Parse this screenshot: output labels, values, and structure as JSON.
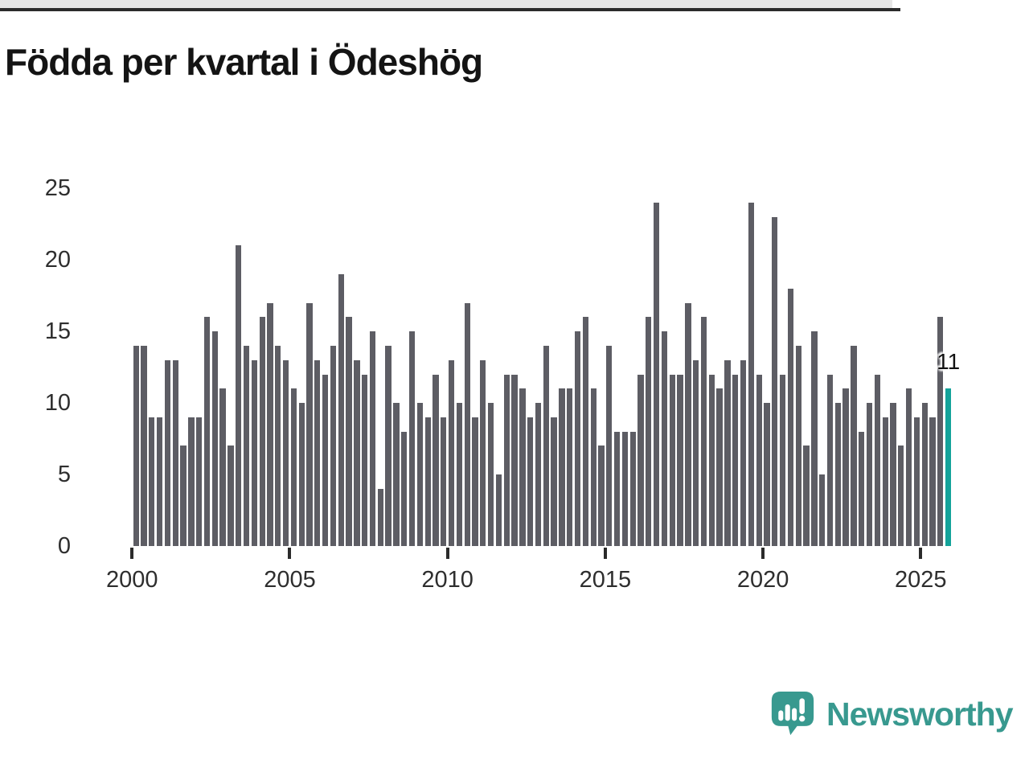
{
  "title": "Födda per kvartal i Ödeshög",
  "chart_data": {
    "type": "bar",
    "title": "Födda per kvartal i Ödeshög",
    "x_unit": "quarter",
    "x_start": "2000Q1",
    "x_end": "2025Q4",
    "values": [
      14,
      14,
      9,
      9,
      13,
      13,
      7,
      9,
      9,
      16,
      15,
      11,
      7,
      21,
      14,
      13,
      16,
      17,
      14,
      13,
      11,
      10,
      17,
      13,
      12,
      14,
      19,
      16,
      13,
      12,
      15,
      4,
      14,
      10,
      8,
      15,
      10,
      9,
      12,
      9,
      13,
      10,
      17,
      9,
      13,
      10,
      5,
      12,
      12,
      11,
      9,
      10,
      14,
      9,
      11,
      11,
      15,
      16,
      11,
      7,
      14,
      8,
      8,
      8,
      12,
      16,
      24,
      15,
      12,
      12,
      17,
      13,
      16,
      12,
      11,
      13,
      12,
      13,
      24,
      12,
      10,
      23,
      12,
      18,
      14,
      7,
      15,
      5,
      12,
      10,
      11,
      14,
      8,
      10,
      12,
      9,
      10,
      7,
      11,
      9,
      10,
      9,
      16,
      11
    ],
    "x_tick_labels": [
      "2000",
      "2005",
      "2010",
      "2015",
      "2020",
      "2025"
    ],
    "y_tick_labels": [
      "0",
      "5",
      "10",
      "15",
      "20",
      "25"
    ],
    "ylim": [
      0,
      25
    ],
    "grid": "horizontal",
    "legend": "none",
    "highlight": {
      "index": 103,
      "quarter": "2025Q4",
      "value": 11,
      "label": "11"
    }
  },
  "colors": {
    "bar": "#5d5d64",
    "highlight": "#14a39a",
    "grid": "#e6e6e6",
    "axis": "#2b2b2b",
    "tick_text": "#2e2e2e",
    "title_text": "#141414",
    "logo": "#38998f"
  },
  "logo": {
    "wordmark": "Newsworthy",
    "icon": "speech-bubble-bar-chart-exclamation"
  }
}
